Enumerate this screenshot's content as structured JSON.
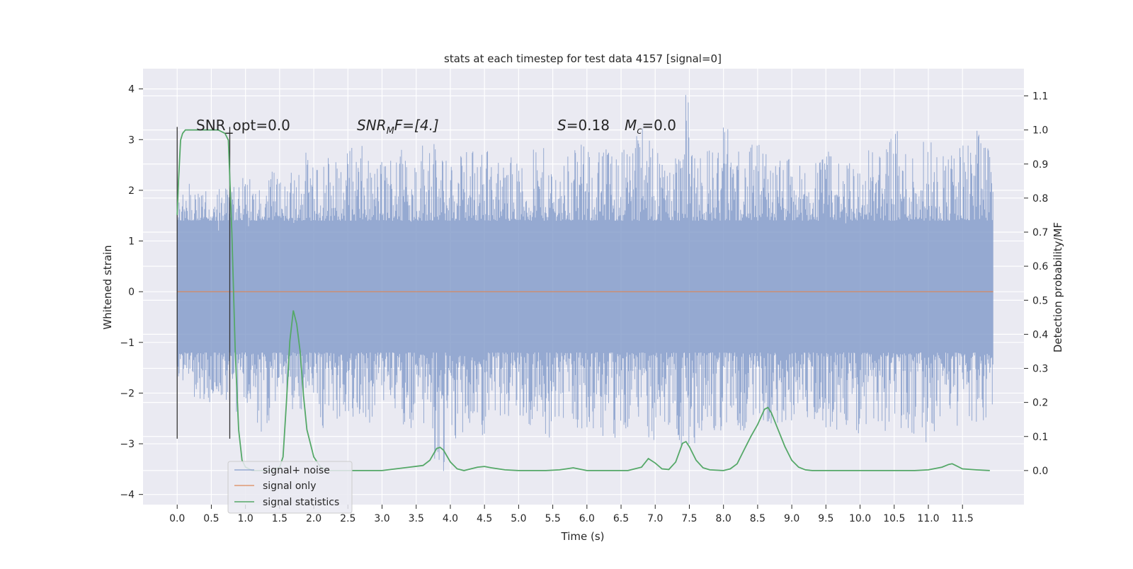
{
  "chart_data": {
    "type": "line",
    "title": "stats at each timestep for test data 4157 [signal=0]",
    "xlabel": "Time (s)",
    "ylabel": "Whitened strain",
    "y2label": "Detection probability/MF",
    "xlim": [
      -0.5,
      12.4
    ],
    "ylim": [
      -4.2,
      4.4
    ],
    "y2lim": [
      -0.1,
      1.18
    ],
    "x_ticks": [
      "0.0",
      "0.5",
      "1.0",
      "1.5",
      "2.0",
      "2.5",
      "3.0",
      "3.5",
      "4.0",
      "4.5",
      "5.0",
      "5.5",
      "6.0",
      "6.5",
      "7.0",
      "7.5",
      "8.0",
      "8.5",
      "9.0",
      "9.5",
      "10.0",
      "10.5",
      "11.0",
      "11.5"
    ],
    "y_ticks": [
      "4",
      "3",
      "2",
      "1",
      "0",
      "−1",
      "−2",
      "−3",
      "−4"
    ],
    "y2_ticks": [
      "1.1",
      "1.0",
      "0.9",
      "0.8",
      "0.7",
      "0.6",
      "0.5",
      "0.4",
      "0.3",
      "0.2",
      "0.1",
      "0.0"
    ],
    "grid": true,
    "legend_position": "bottom-left",
    "annotations": {
      "snr_opt": "SNR_opt=0.0",
      "snr_mf_main": "SNR",
      "snr_mf_sub": "M",
      "snr_mf_rest": "F=[4.]",
      "s_label": "S",
      "s_value": "=0.18",
      "mc_label": "M",
      "mc_sub": "c",
      "mc_value": "=0.0"
    },
    "markers": {
      "x": [
        0.0,
        0.77
      ],
      "y_range": [
        -2.9,
        3.25
      ]
    },
    "series": [
      {
        "name": "signal+ noise",
        "color": "#7f98c8",
        "description": "noise strain samples",
        "x_range": [
          0.0,
          11.95
        ],
        "envelope_upper": [
          1.9,
          2.2,
          2.0,
          2.4,
          2.1,
          2.3,
          2.0,
          2.5,
          2.2,
          2.9,
          2.4,
          2.7,
          2.6,
          3.1,
          2.5,
          2.8,
          2.9,
          2.6,
          3.3,
          2.7,
          2.6,
          2.8,
          3.2,
          2.6,
          2.7,
          2.5,
          2.9,
          2.8,
          2.6,
          3.0,
          2.7,
          2.9,
          2.8,
          3.6,
          3.1,
          2.8,
          3.2,
          4.1,
          2.9,
          3.0,
          3.5,
          2.8,
          3.0,
          2.6,
          2.7,
          2.5,
          2.6,
          2.8,
          2.7,
          2.6,
          2.8,
          2.9,
          3.2,
          2.9,
          3.3,
          3.0,
          2.8,
          3.1,
          3.2,
          2.8
        ],
        "envelope_lower": [
          -1.7,
          -2.1,
          -2.3,
          -2.0,
          -2.5,
          -2.2,
          -2.8,
          -2.4,
          -2.2,
          -2.6,
          -2.5,
          -2.9,
          -2.4,
          -2.8,
          -2.6,
          -2.3,
          -2.6,
          -2.9,
          -2.7,
          -3.7,
          -3.2,
          -2.6,
          -2.9,
          -2.5,
          -2.8,
          -2.6,
          -2.7,
          -2.9,
          -2.6,
          -2.9,
          -2.8,
          -3.0,
          -2.9,
          -2.6,
          -2.9,
          -3.1,
          -2.9,
          -3.3,
          -2.7,
          -2.9,
          -2.6,
          -2.8,
          -2.5,
          -2.7,
          -2.6,
          -2.5,
          -2.6,
          -2.8,
          -2.7,
          -2.9,
          -2.6,
          -2.8,
          -2.7,
          -2.9,
          -3.2,
          -2.6,
          -2.8,
          -2.5,
          -2.6,
          -2.4
        ]
      },
      {
        "name": "signal only",
        "color": "#dd8452",
        "x": [
          0.0,
          11.95
        ],
        "y": [
          0.0,
          0.0
        ]
      },
      {
        "name": "signal statistics",
        "color": "#55a868",
        "axis": "right",
        "x": [
          0.0,
          0.02,
          0.05,
          0.08,
          0.12,
          0.2,
          0.3,
          0.4,
          0.5,
          0.6,
          0.7,
          0.75,
          0.8,
          0.85,
          0.9,
          0.95,
          1.0,
          1.1,
          1.2,
          1.3,
          1.4,
          1.5,
          1.55,
          1.6,
          1.65,
          1.7,
          1.75,
          1.8,
          1.85,
          1.9,
          2.0,
          2.1,
          2.2,
          2.4,
          2.6,
          2.8,
          3.0,
          3.2,
          3.4,
          3.6,
          3.7,
          3.8,
          3.85,
          3.9,
          4.0,
          4.1,
          4.2,
          4.3,
          4.4,
          4.5,
          4.6,
          4.8,
          5.0,
          5.2,
          5.4,
          5.6,
          5.7,
          5.8,
          5.9,
          6.0,
          6.2,
          6.4,
          6.6,
          6.8,
          6.9,
          7.0,
          7.1,
          7.2,
          7.3,
          7.4,
          7.45,
          7.5,
          7.6,
          7.7,
          7.8,
          8.0,
          8.1,
          8.2,
          8.3,
          8.4,
          8.5,
          8.6,
          8.65,
          8.7,
          8.8,
          8.9,
          9.0,
          9.1,
          9.2,
          9.3,
          9.5,
          10.0,
          10.5,
          10.8,
          11.0,
          11.2,
          11.3,
          11.35,
          11.4,
          11.5,
          11.7,
          11.9
        ],
        "y": [
          0.75,
          0.85,
          0.97,
          0.99,
          1.0,
          1.0,
          1.0,
          1.0,
          1.0,
          1.0,
          0.99,
          0.97,
          0.7,
          0.35,
          0.12,
          0.03,
          0.01,
          0.0,
          0.0,
          0.0,
          0.0,
          0.01,
          0.04,
          0.2,
          0.38,
          0.47,
          0.43,
          0.35,
          0.22,
          0.12,
          0.04,
          0.01,
          0.0,
          0.0,
          0.0,
          0.0,
          0.0,
          0.005,
          0.01,
          0.015,
          0.03,
          0.065,
          0.068,
          0.06,
          0.025,
          0.005,
          0.0,
          0.005,
          0.01,
          0.012,
          0.008,
          0.002,
          0.0,
          0.0,
          0.0,
          0.002,
          0.005,
          0.008,
          0.004,
          0.0,
          0.0,
          0.0,
          0.0,
          0.01,
          0.035,
          0.022,
          0.005,
          0.003,
          0.025,
          0.08,
          0.085,
          0.07,
          0.03,
          0.008,
          0.002,
          0.0,
          0.005,
          0.02,
          0.06,
          0.1,
          0.135,
          0.18,
          0.185,
          0.17,
          0.12,
          0.07,
          0.03,
          0.01,
          0.002,
          0.0,
          0.0,
          0.0,
          0.0,
          0.0,
          0.002,
          0.01,
          0.018,
          0.02,
          0.015,
          0.005,
          0.002,
          0.0
        ]
      }
    ]
  }
}
